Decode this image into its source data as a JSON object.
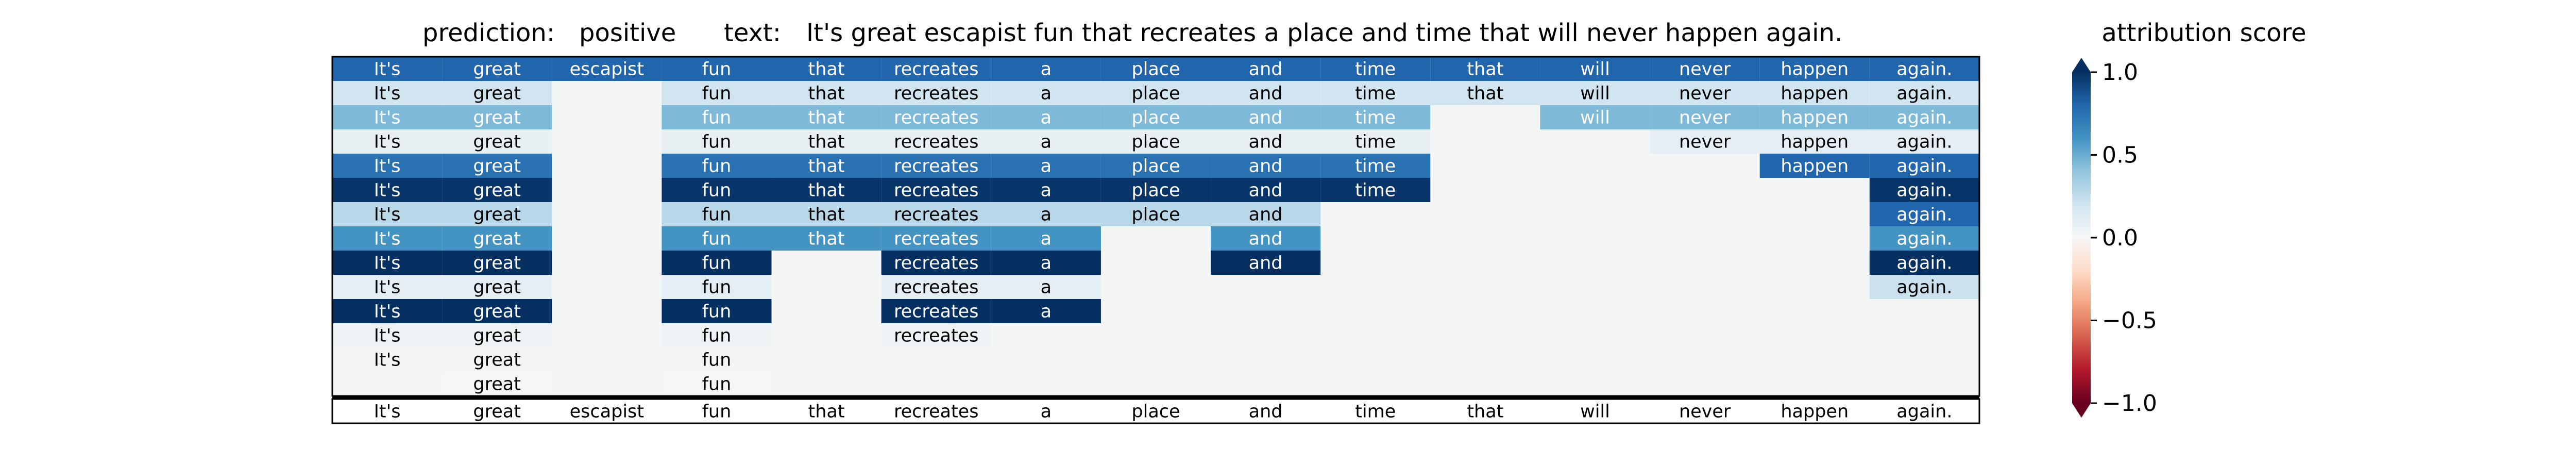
{
  "chart_data": {
    "type": "heatmap",
    "header": {
      "prediction_label": "prediction:",
      "prediction_value": "positive",
      "text_label": "text:",
      "text_value": "It's great escapist fun that recreates a place and time that will never happen again."
    },
    "tokens": [
      "It's",
      "great",
      "escapist",
      "fun",
      "that",
      "recreates",
      "a",
      "place",
      "and",
      "time",
      "that",
      "will",
      "never",
      "happen",
      "again."
    ],
    "rows": [
      [
        0.8,
        0.8,
        0.8,
        0.8,
        0.8,
        0.8,
        0.8,
        0.8,
        0.8,
        0.8,
        0.8,
        0.8,
        0.8,
        0.8,
        0.8
      ],
      [
        0.2,
        0.2,
        null,
        0.2,
        0.2,
        0.2,
        0.2,
        0.2,
        0.2,
        0.2,
        0.2,
        0.2,
        0.2,
        0.2,
        0.2
      ],
      [
        0.45,
        0.45,
        null,
        0.45,
        0.45,
        0.45,
        0.45,
        0.45,
        0.45,
        0.45,
        null,
        0.45,
        0.45,
        0.45,
        0.45
      ],
      [
        0.08,
        0.08,
        null,
        0.08,
        0.08,
        0.08,
        0.08,
        0.08,
        0.08,
        0.08,
        null,
        null,
        0.1,
        0.1,
        0.1
      ],
      [
        0.75,
        0.75,
        null,
        0.75,
        0.75,
        0.75,
        0.75,
        0.75,
        0.75,
        0.75,
        null,
        null,
        null,
        0.8,
        0.8
      ],
      [
        0.98,
        0.98,
        null,
        0.98,
        0.98,
        0.98,
        0.98,
        0.98,
        0.98,
        0.98,
        null,
        null,
        null,
        null,
        0.98
      ],
      [
        0.28,
        0.28,
        null,
        0.28,
        0.28,
        0.28,
        0.28,
        0.28,
        0.28,
        null,
        null,
        null,
        null,
        null,
        0.8
      ],
      [
        0.6,
        0.6,
        null,
        0.6,
        0.6,
        0.6,
        0.6,
        null,
        0.6,
        null,
        null,
        null,
        null,
        null,
        0.6
      ],
      [
        1.0,
        1.0,
        null,
        1.0,
        null,
        1.0,
        1.0,
        null,
        1.0,
        null,
        null,
        null,
        null,
        null,
        1.0
      ],
      [
        0.1,
        0.1,
        null,
        0.1,
        null,
        0.1,
        0.1,
        null,
        null,
        null,
        null,
        null,
        null,
        null,
        0.22
      ],
      [
        1.0,
        1.0,
        null,
        1.0,
        null,
        1.0,
        1.0,
        null,
        null,
        null,
        null,
        null,
        null,
        null,
        null
      ],
      [
        0.05,
        0.05,
        null,
        0.05,
        null,
        0.05,
        null,
        null,
        null,
        null,
        null,
        null,
        null,
        null,
        null
      ],
      [
        0.02,
        0.02,
        null,
        0.02,
        null,
        null,
        null,
        null,
        null,
        null,
        null,
        null,
        null,
        null,
        null
      ],
      [
        null,
        0.01,
        null,
        0.01,
        null,
        null,
        null,
        null,
        null,
        null,
        null,
        null,
        null,
        null,
        null
      ]
    ],
    "colorbar": {
      "label": "attribution score",
      "colormap": "RdBu",
      "range": [
        -1.0,
        1.0
      ],
      "ticks": [
        1.0,
        0.5,
        0.0,
        -0.5,
        -1.0
      ],
      "tick_labels": [
        "1.0",
        "0.5",
        "0.0",
        "−0.5",
        "−1.0"
      ],
      "extend": "both"
    },
    "empty_cell_color": "#f4f6f6"
  }
}
